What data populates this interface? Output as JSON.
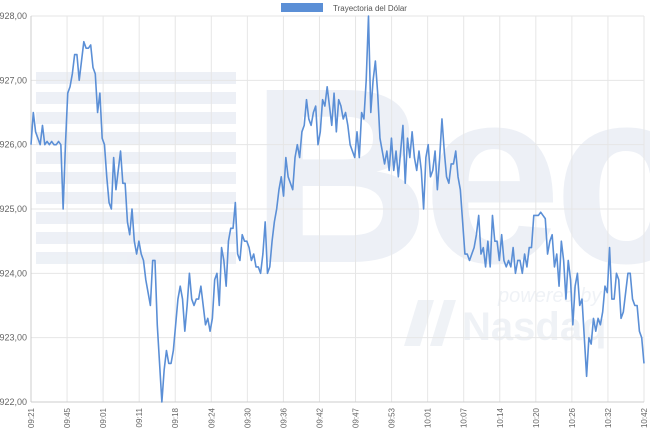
{
  "chart_data": {
    "type": "line",
    "title": "",
    "xlabel": "",
    "ylabel": "",
    "ylim": [
      922,
      928
    ],
    "y_ticks": [
      "$922,00",
      "$923,00",
      "$924,00",
      "$925,00",
      "$926,00",
      "$927,00",
      "$928,00"
    ],
    "x_tick_labels": [
      "09:21",
      "09:45",
      "09:01",
      "09:11",
      "09:18",
      "09:24",
      "09:30",
      "09:36",
      "09:42",
      "09:47",
      "09:53",
      "10:01",
      "10:07",
      "10:14",
      "10:20",
      "10:26",
      "10:32",
      "10:42"
    ],
    "grid": true,
    "legend_position": "top-center",
    "series": [
      {
        "name": "Trayectoria del Dólar",
        "color": "#5b8fd6",
        "values": [
          926.0,
          926.5,
          926.2,
          926.1,
          926.0,
          926.3,
          926.0,
          926.05,
          926.0,
          926.05,
          926.0,
          926.0,
          926.05,
          926.0,
          925.0,
          926.0,
          926.8,
          926.9,
          927.1,
          927.4,
          927.4,
          927.0,
          927.3,
          927.6,
          927.5,
          927.5,
          927.55,
          927.2,
          927.1,
          926.5,
          926.8,
          926.1,
          926.0,
          925.5,
          925.1,
          925.0,
          925.8,
          925.3,
          925.6,
          925.9,
          925.4,
          925.4,
          924.8,
          924.6,
          925.0,
          924.5,
          924.3,
          924.5,
          924.3,
          924.2,
          923.9,
          923.7,
          923.5,
          924.2,
          924.2,
          923.2,
          922.6,
          922.0,
          922.5,
          922.8,
          922.6,
          922.6,
          922.8,
          923.2,
          923.6,
          923.8,
          923.6,
          923.1,
          923.5,
          924.0,
          923.6,
          923.5,
          923.6,
          923.6,
          923.8,
          923.5,
          923.2,
          923.3,
          923.1,
          923.3,
          923.9,
          924.0,
          923.5,
          924.4,
          924.2,
          923.8,
          924.5,
          924.7,
          924.7,
          925.1,
          924.3,
          924.2,
          924.6,
          924.5,
          924.5,
          924.4,
          924.2,
          924.3,
          924.1,
          924.1,
          924.0,
          924.3,
          924.8,
          924.0,
          924.1,
          924.5,
          924.8,
          925.0,
          925.3,
          925.5,
          925.2,
          925.8,
          925.5,
          925.4,
          925.3,
          925.8,
          926.0,
          925.8,
          926.2,
          926.3,
          926.7,
          926.4,
          926.3,
          926.5,
          926.6,
          926.0,
          926.2,
          926.7,
          926.6,
          926.9,
          926.6,
          926.3,
          926.8,
          926.2,
          926.7,
          926.6,
          926.4,
          926.5,
          926.3,
          926.0,
          925.9,
          925.8,
          926.2,
          925.8,
          926.5,
          926.4,
          927.0,
          928.0,
          926.5,
          927.0,
          927.3,
          926.8,
          926.1,
          925.9,
          925.7,
          925.9,
          925.6,
          926.1,
          925.6,
          925.9,
          925.5,
          925.9,
          926.3,
          925.4,
          926.1,
          925.8,
          926.2,
          925.8,
          925.6,
          925.9,
          925.6,
          925.0,
          925.8,
          926.0,
          925.5,
          925.6,
          925.9,
          925.3,
          925.8,
          926.4,
          925.9,
          925.5,
          925.4,
          925.7,
          925.7,
          925.9,
          925.5,
          925.3,
          924.8,
          924.3,
          924.3,
          924.2,
          924.3,
          924.4,
          924.6,
          924.9,
          924.3,
          924.4,
          924.1,
          924.5,
          924.1,
          924.9,
          924.5,
          924.5,
          924.2,
          924.6,
          924.2,
          924.1,
          924.2,
          924.1,
          924.4,
          924.0,
          924.2,
          924.2,
          924.0,
          924.3,
          924.1,
          924.4,
          924.4,
          924.9,
          924.9,
          924.9,
          924.95,
          924.9,
          924.85,
          924.3,
          924.5,
          924.6,
          924.1,
          924.3,
          923.8,
          924.5,
          924.2,
          923.6,
          924.2,
          923.9,
          923.2,
          923.8,
          924.0,
          923.5,
          923.6,
          923.0,
          922.4,
          923.0,
          922.9,
          923.3,
          923.1,
          923.3,
          923.2,
          923.4,
          923.8,
          923.7,
          924.4,
          923.6,
          923.6,
          924.0,
          923.9,
          923.3,
          923.4,
          923.7,
          924.0,
          924.0,
          923.6,
          923.5,
          923.5,
          923.1,
          923.0,
          922.6
        ]
      }
    ]
  },
  "watermark": {
    "brand": "Bec",
    "powered_by": "powered by",
    "partner": "Nasdaq"
  }
}
